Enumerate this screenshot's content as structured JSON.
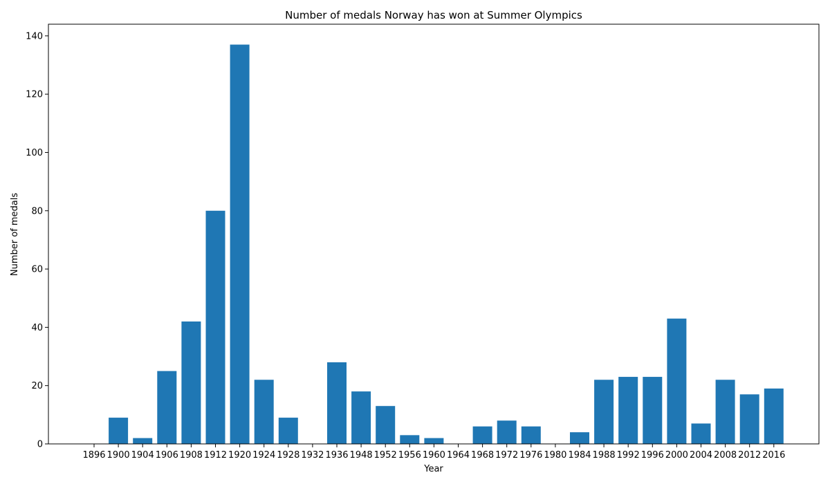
{
  "chart_data": {
    "type": "bar",
    "title": "Number of medals Norway has won at Summer Olympics",
    "xlabel": "Year",
    "ylabel": "Number of medals",
    "categories": [
      "1896",
      "1900",
      "1904",
      "1906",
      "1908",
      "1912",
      "1920",
      "1924",
      "1928",
      "1932",
      "1936",
      "1948",
      "1952",
      "1956",
      "1960",
      "1964",
      "1968",
      "1972",
      "1976",
      "1980",
      "1984",
      "1988",
      "1992",
      "1996",
      "2000",
      "2004",
      "2008",
      "2012",
      "2016"
    ],
    "values": [
      0,
      9,
      2,
      25,
      42,
      80,
      137,
      22,
      9,
      0,
      28,
      18,
      13,
      3,
      2,
      0,
      6,
      8,
      6,
      0,
      4,
      22,
      23,
      23,
      43,
      7,
      22,
      17,
      19
    ],
    "ylim": [
      0,
      144
    ],
    "yticks": [
      0,
      20,
      40,
      60,
      80,
      100,
      120,
      140
    ],
    "grid": false,
    "bar_color": "#1f77b4"
  }
}
